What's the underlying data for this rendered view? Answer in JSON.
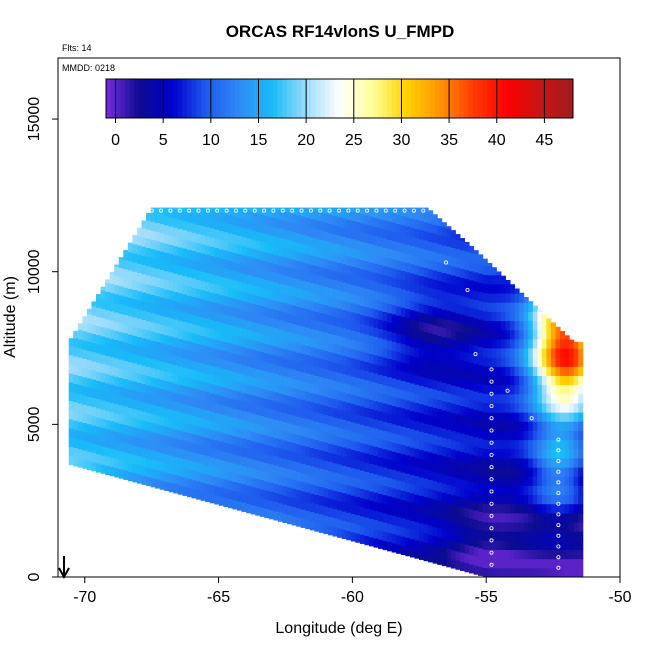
{
  "chart_data": {
    "type": "heatmap",
    "title": "ORCAS RF14vlonS U_FMPD",
    "flts_text": "Flts: 14",
    "mmdd_text": "MMDD: 0218",
    "xlabel": "Longitude (deg E)",
    "ylabel": "Altitude (m)",
    "xlim": [
      -71.0,
      -50.0
    ],
    "ylim": [
      0,
      17000
    ],
    "x_ticks": [
      -70,
      -65,
      -60,
      -55,
      -50
    ],
    "x_tick_labels": [
      "-70",
      "-65",
      "-60",
      "-55",
      "-50"
    ],
    "y_ticks": [
      0,
      5000,
      10000,
      15000
    ],
    "y_tick_labels": [
      "0",
      "5000",
      "10000",
      "15000"
    ],
    "colorbar": {
      "ticks": [
        0,
        5,
        10,
        15,
        20,
        25,
        30,
        35,
        40,
        45
      ],
      "tick_labels": [
        "0",
        "5",
        "10",
        "15",
        "20",
        "25",
        "30",
        "35",
        "40",
        "45"
      ],
      "range": [
        -1,
        48
      ],
      "colors": [
        "#7a2be0",
        "#0c0c90",
        "#0000cc",
        "#1e5aee",
        "#2f8af5",
        "#18bcf8",
        "#9edcfa",
        "#ffffff",
        "#ffff99",
        "#ffd200",
        "#ff9500",
        "#ff3c00",
        "#ff0000",
        "#c81414",
        "#a01e1e"
      ]
    },
    "value_summary": {
      "west_upper_troposphere_range": [
        15,
        22
      ],
      "core_minimum_near": {
        "lon": -57,
        "alt_m": 8000,
        "value": 1
      },
      "jet_maximum_near": {
        "lon": -52,
        "alt_m": 7500,
        "value": 45
      },
      "lowest_values_near_surface_east": {
        "lon": -55,
        "alt_m": 1000,
        "value": 2
      }
    },
    "profile_marker_longitude": -70.8
  }
}
